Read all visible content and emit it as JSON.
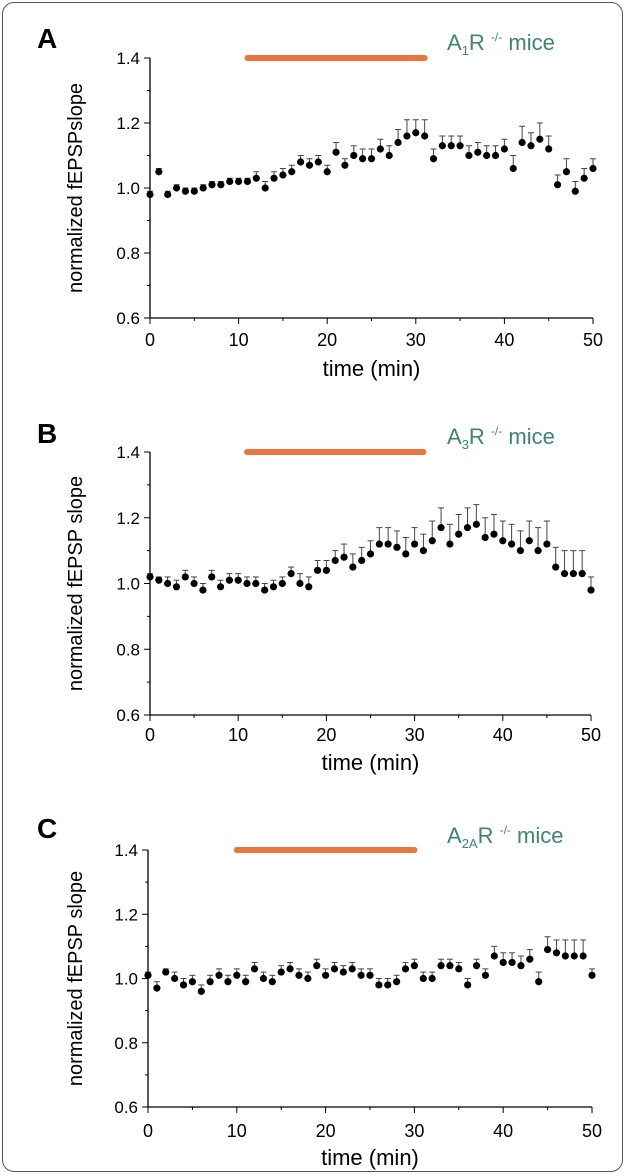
{
  "chart_data": [
    {
      "type": "scatter",
      "panel_label": "A",
      "legend": "A1R -/- mice",
      "legend_parts": {
        "prefix": "A",
        "sub": "1",
        "mid": "R ",
        "sup": "-/-",
        "suffix": " mice"
      },
      "xlabel": "time (min)",
      "ylabel": "normalized fEPSPslope",
      "xlim": [
        0,
        50
      ],
      "ylim": [
        0.6,
        1.4
      ],
      "xticks": [
        0,
        10,
        20,
        30,
        40,
        50
      ],
      "yticks": [
        "0.6",
        "0.8",
        "1.0",
        "1.2",
        "1.4"
      ],
      "drug_bar": [
        11,
        31
      ],
      "x": [
        0,
        1,
        2,
        3,
        4,
        5,
        6,
        7,
        8,
        9,
        10,
        11,
        12,
        13,
        14,
        15,
        16,
        17,
        18,
        19,
        20,
        21,
        22,
        23,
        24,
        25,
        26,
        27,
        28,
        29,
        30,
        31,
        32,
        33,
        34,
        35,
        36,
        37,
        38,
        39,
        40,
        41,
        42,
        43,
        44,
        45,
        46,
        47,
        48,
        49,
        50
      ],
      "y": [
        0.98,
        1.05,
        0.98,
        1.0,
        0.99,
        0.99,
        1.0,
        1.01,
        1.01,
        1.02,
        1.02,
        1.02,
        1.03,
        1.0,
        1.03,
        1.04,
        1.05,
        1.08,
        1.07,
        1.08,
        1.05,
        1.11,
        1.07,
        1.1,
        1.09,
        1.09,
        1.12,
        1.1,
        1.14,
        1.16,
        1.17,
        1.16,
        1.09,
        1.13,
        1.13,
        1.13,
        1.1,
        1.11,
        1.1,
        1.1,
        1.12,
        1.06,
        1.14,
        1.13,
        1.15,
        1.12,
        1.01,
        1.05,
        0.99,
        1.03,
        1.06
      ],
      "err": [
        0.01,
        0.01,
        0.01,
        0.01,
        0.01,
        0.01,
        0.01,
        0.01,
        0.01,
        0.01,
        0.01,
        0.01,
        0.02,
        0.02,
        0.02,
        0.02,
        0.02,
        0.02,
        0.02,
        0.02,
        0.02,
        0.03,
        0.02,
        0.03,
        0.03,
        0.03,
        0.03,
        0.03,
        0.04,
        0.05,
        0.04,
        0.05,
        0.03,
        0.03,
        0.03,
        0.03,
        0.03,
        0.03,
        0.03,
        0.03,
        0.03,
        0.04,
        0.05,
        0.04,
        0.05,
        0.04,
        0.03,
        0.04,
        0.03,
        0.03,
        0.03
      ]
    },
    {
      "type": "scatter",
      "panel_label": "B",
      "legend": "A3R -/- mice",
      "legend_parts": {
        "prefix": "A",
        "sub": "3",
        "mid": "R ",
        "sup": "-/-",
        "suffix": " mice"
      },
      "xlabel": "time (min)",
      "ylabel": "normalized fEPSP slope",
      "xlim": [
        0,
        50
      ],
      "ylim": [
        0.6,
        1.4
      ],
      "xticks": [
        0,
        10,
        20,
        30,
        40,
        50
      ],
      "yticks": [
        "0.6",
        "0.8",
        "1.0",
        "1.2",
        "1.4"
      ],
      "drug_bar": [
        11,
        31
      ],
      "x": [
        0,
        1,
        2,
        3,
        4,
        5,
        6,
        7,
        8,
        9,
        10,
        11,
        12,
        13,
        14,
        15,
        16,
        17,
        18,
        19,
        20,
        21,
        22,
        23,
        24,
        25,
        26,
        27,
        28,
        29,
        30,
        31,
        32,
        33,
        34,
        35,
        36,
        37,
        38,
        39,
        40,
        41,
        42,
        43,
        44,
        45,
        46,
        47,
        48,
        49,
        50
      ],
      "y": [
        1.02,
        1.01,
        1.0,
        0.99,
        1.02,
        1.0,
        0.98,
        1.02,
        0.99,
        1.01,
        1.01,
        1.0,
        1.0,
        0.98,
        0.99,
        1.0,
        1.03,
        1.0,
        0.99,
        1.04,
        1.04,
        1.07,
        1.08,
        1.05,
        1.07,
        1.09,
        1.12,
        1.12,
        1.11,
        1.09,
        1.12,
        1.1,
        1.13,
        1.17,
        1.12,
        1.15,
        1.17,
        1.18,
        1.14,
        1.15,
        1.13,
        1.12,
        1.1,
        1.13,
        1.1,
        1.12,
        1.05,
        1.03,
        1.03,
        1.03,
        0.98
      ],
      "err": [
        0.01,
        0.01,
        0.02,
        0.02,
        0.02,
        0.02,
        0.02,
        0.02,
        0.02,
        0.02,
        0.02,
        0.02,
        0.02,
        0.02,
        0.02,
        0.02,
        0.02,
        0.03,
        0.03,
        0.03,
        0.03,
        0.03,
        0.04,
        0.04,
        0.04,
        0.04,
        0.05,
        0.05,
        0.05,
        0.05,
        0.05,
        0.05,
        0.06,
        0.06,
        0.06,
        0.06,
        0.06,
        0.06,
        0.06,
        0.06,
        0.06,
        0.06,
        0.06,
        0.06,
        0.07,
        0.07,
        0.06,
        0.07,
        0.07,
        0.07,
        0.04
      ]
    },
    {
      "type": "scatter",
      "panel_label": "C",
      "legend": "A2AR -/- mice",
      "legend_parts": {
        "prefix": "A",
        "sub": "2A",
        "mid": "R ",
        "sup": "-/-",
        "suffix": " mice"
      },
      "xlabel": "time (min)",
      "ylabel": "normalized fEPSP slope",
      "xlim": [
        0,
        50
      ],
      "ylim": [
        0.6,
        1.4
      ],
      "xticks": [
        0,
        10,
        20,
        30,
        40,
        50
      ],
      "yticks": [
        "0.6",
        "0.8",
        "1.0",
        "1.2",
        "1.4"
      ],
      "drug_bar": [
        10,
        30
      ],
      "x": [
        0,
        1,
        2,
        3,
        4,
        5,
        6,
        7,
        8,
        9,
        10,
        11,
        12,
        13,
        14,
        15,
        16,
        17,
        18,
        19,
        20,
        21,
        22,
        23,
        24,
        25,
        26,
        27,
        28,
        29,
        30,
        31,
        32,
        33,
        34,
        35,
        36,
        37,
        38,
        39,
        40,
        41,
        42,
        43,
        44,
        45,
        46,
        47,
        48,
        49,
        50
      ],
      "y": [
        1.01,
        0.97,
        1.02,
        1.0,
        0.98,
        0.99,
        0.96,
        0.99,
        1.01,
        0.99,
        1.01,
        0.99,
        1.03,
        1.0,
        0.99,
        1.02,
        1.03,
        1.01,
        1.0,
        1.04,
        1.01,
        1.03,
        1.02,
        1.03,
        1.01,
        1.01,
        0.98,
        0.98,
        0.99,
        1.03,
        1.04,
        1.0,
        1.0,
        1.04,
        1.04,
        1.03,
        0.98,
        1.04,
        1.01,
        1.07,
        1.05,
        1.05,
        1.04,
        1.06,
        0.99,
        1.09,
        1.08,
        1.07,
        1.07,
        1.07,
        1.01
      ],
      "err": [
        0.01,
        0.02,
        0.01,
        0.02,
        0.02,
        0.02,
        0.02,
        0.02,
        0.02,
        0.02,
        0.02,
        0.02,
        0.02,
        0.02,
        0.02,
        0.02,
        0.02,
        0.02,
        0.02,
        0.02,
        0.02,
        0.02,
        0.02,
        0.02,
        0.02,
        0.02,
        0.02,
        0.02,
        0.02,
        0.02,
        0.02,
        0.02,
        0.02,
        0.02,
        0.02,
        0.02,
        0.02,
        0.02,
        0.02,
        0.03,
        0.03,
        0.03,
        0.03,
        0.03,
        0.03,
        0.04,
        0.04,
        0.05,
        0.05,
        0.05,
        0.02
      ]
    }
  ],
  "colors": {
    "marker": "#000000",
    "drug_bar": "#e8773f",
    "legend_text": "#3f8471",
    "axis": "#000000"
  }
}
